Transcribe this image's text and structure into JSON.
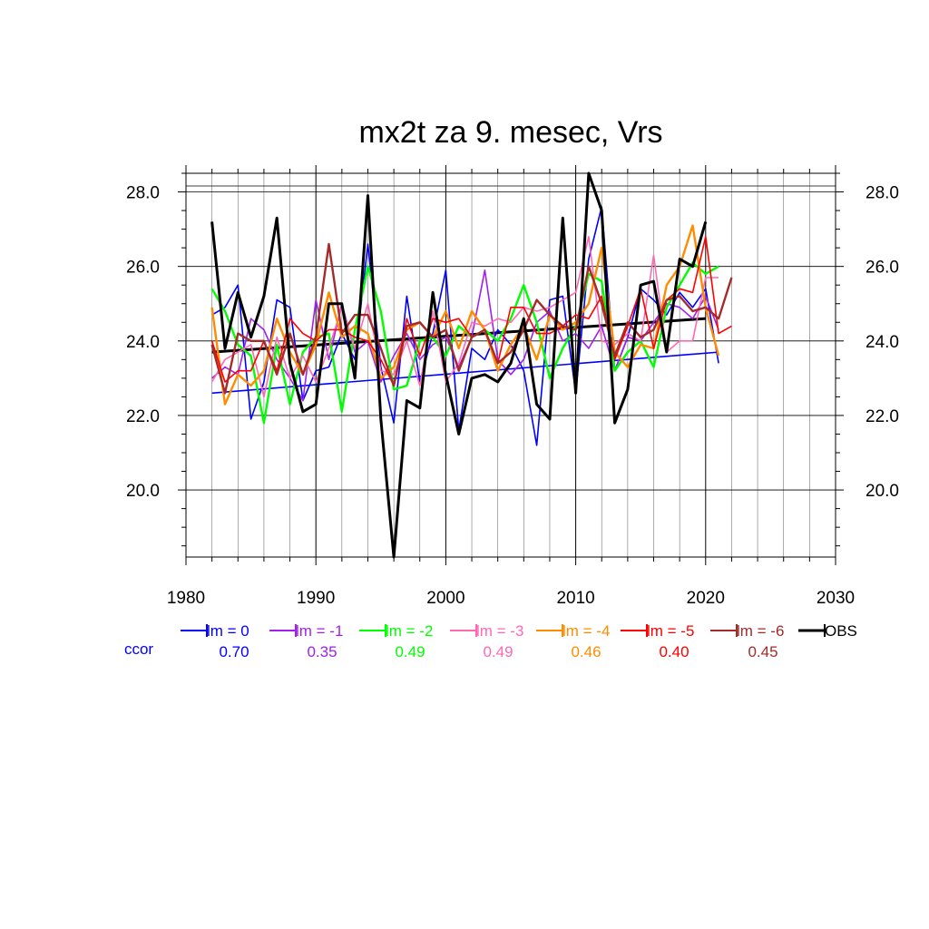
{
  "chart_data": {
    "type": "line",
    "title": "mx2t za 9. mesec, Vrs",
    "xlim": [
      1980,
      2030
    ],
    "ylim": [
      18.2,
      28.5
    ],
    "x_ticks": [
      1980,
      1990,
      2000,
      2010,
      2020,
      2030
    ],
    "x_tick_labels": [
      "1980",
      "1990",
      "2000",
      "2010",
      "2020",
      "2030"
    ],
    "y_ticks": [
      20.0,
      22.0,
      24.0,
      26.0,
      28.0
    ],
    "y_tick_labels": [
      "20.0",
      "22.0",
      "24.0",
      "26.0",
      "28.0"
    ],
    "grid": true,
    "legend_position": "below",
    "ccor_label": "ccor",
    "ccor_color": "#0000ff",
    "series": [
      {
        "name": "lm = 0",
        "color": "#0000ff",
        "width": 1.6,
        "ccor": "0.70",
        "x_start": 1982,
        "values": [
          24.7,
          24.9,
          25.5,
          21.9,
          22.9,
          25.1,
          24.9,
          22.4,
          23.2,
          23.3,
          24.2,
          23.5,
          26.6,
          23.3,
          21.8,
          25.2,
          22.9,
          24.2,
          25.9,
          21.6,
          23.8,
          23.5,
          24.3,
          23.9,
          23.2,
          21.2,
          25.1,
          25.2,
          22.6,
          26.2,
          27.6,
          23.2,
          24.1,
          25.4,
          25.1,
          24.7,
          25.3,
          24.9,
          25.4,
          23.4
        ],
        "trend": [
          22.6,
          23.7
        ]
      },
      {
        "name": "lm = -1",
        "color": "#a020f0",
        "width": 1.6,
        "ccor": "0.35",
        "x_start": 1982,
        "values": [
          23.0,
          23.3,
          23.1,
          24.6,
          24.3,
          23.5,
          23.0,
          22.4,
          25.1,
          23.5,
          25.0,
          23.7,
          24.0,
          22.9,
          23.6,
          24.2,
          23.5,
          23.9,
          24.1,
          23.3,
          24.1,
          25.9,
          23.5,
          23.1,
          23.5,
          24.5,
          24.8,
          24.0,
          24.2,
          23.8,
          24.4,
          23.2,
          24.1,
          24.0,
          24.5,
          25.0,
          24.9,
          24.6,
          25.2,
          24.3
        ],
        "trend": null
      },
      {
        "name": "lm = -2",
        "color": "#00ff00",
        "width": 2.4,
        "ccor": "0.49",
        "x_start": 1982,
        "values": [
          25.4,
          24.8,
          23.9,
          23.6,
          21.8,
          23.9,
          22.3,
          23.7,
          24.1,
          24.2,
          22.1,
          24.3,
          26.0,
          24.8,
          22.7,
          22.8,
          24.0,
          24.1,
          23.6,
          24.4,
          24.1,
          24.3,
          24.0,
          24.6,
          25.5,
          24.5,
          23.0,
          23.8,
          24.4,
          25.8,
          25.6,
          23.2,
          23.7,
          24.0,
          23.3,
          24.9,
          25.5,
          26.1,
          25.8,
          26.0
        ],
        "trend": null
      },
      {
        "name": "lm = -3",
        "color": "#ff69b4",
        "width": 1.6,
        "ccor": "0.49",
        "x_start": 1982,
        "values": [
          22.9,
          23.5,
          23.7,
          23.9,
          22.5,
          24.1,
          23.0,
          23.6,
          22.9,
          23.8,
          24.9,
          23.8,
          25.0,
          23.2,
          23.1,
          24.0,
          22.8,
          24.8,
          22.9,
          23.4,
          24.5,
          24.4,
          24.6,
          24.5,
          24.9,
          24.8,
          24.9,
          25.1,
          25.3,
          26.8,
          24.0,
          23.9,
          24.2,
          24.0,
          26.3,
          23.7,
          24.0,
          24.0,
          25.7,
          25.7
        ],
        "trend": null
      },
      {
        "name": "lm = -4",
        "color": "#ff8c00",
        "width": 2.4,
        "ccor": "0.46",
        "x_start": 1982,
        "values": [
          24.9,
          22.3,
          23.1,
          22.8,
          23.2,
          24.6,
          23.7,
          23.1,
          23.9,
          25.3,
          24.1,
          24.4,
          24.2,
          23.0,
          23.3,
          24.3,
          24.5,
          24.1,
          24.8,
          23.8,
          24.8,
          24.3,
          23.2,
          23.9,
          24.4,
          23.5,
          24.7,
          24.3,
          24.5,
          25.0,
          26.5,
          23.7,
          23.3,
          23.9,
          23.8,
          25.5,
          26.0,
          27.1,
          24.9,
          23.6
        ],
        "trend": null
      },
      {
        "name": "lm = -5",
        "color": "#ff0000",
        "width": 1.6,
        "ccor": "0.40",
        "x_start": 1982,
        "values": [
          24.0,
          22.9,
          23.2,
          23.2,
          24.0,
          23.2,
          24.6,
          24.2,
          24.0,
          24.3,
          24.3,
          24.1,
          24.0,
          23.5,
          22.8,
          24.6,
          23.6,
          24.6,
          24.5,
          24.6,
          24.1,
          24.3,
          23.4,
          24.9,
          24.9,
          24.2,
          24.2,
          24.4,
          24.7,
          24.6,
          25.2,
          23.5,
          24.4,
          25.4,
          23.8,
          25.1,
          25.4,
          25.3,
          26.8,
          24.2,
          24.4
        ],
        "trend": null
      },
      {
        "name": "lm = -6",
        "color": "#a52a2a",
        "width": 2.4,
        "ccor": "0.45",
        "x_start": 1982,
        "values": [
          23.9,
          22.6,
          24.2,
          24.0,
          24.0,
          23.1,
          24.2,
          23.1,
          24.1,
          26.6,
          24.2,
          24.7,
          24.7,
          23.8,
          22.8,
          24.4,
          24.5,
          24.1,
          24.3,
          23.2,
          24.1,
          24.3,
          23.4,
          23.7,
          24.3,
          25.1,
          24.7,
          24.4,
          24.3,
          26.0,
          25.0,
          23.6,
          24.5,
          24.1,
          24.3,
          25.1,
          25.2,
          24.8,
          24.9,
          24.6,
          25.7
        ],
        "trend": null
      },
      {
        "name": "OBS",
        "color": "#000000",
        "width": 3.0,
        "ccor": "",
        "x_start": 1982,
        "values": [
          27.2,
          23.8,
          25.3,
          24.1,
          25.2,
          27.3,
          23.4,
          22.1,
          22.3,
          25.0,
          25.0,
          23.0,
          27.9,
          21.9,
          18.2,
          22.4,
          22.2,
          25.3,
          23.1,
          21.5,
          23.0,
          23.1,
          22.9,
          23.4,
          24.6,
          22.3,
          21.9,
          27.3,
          22.6,
          28.5,
          27.5,
          21.8,
          22.7,
          25.5,
          25.6,
          23.7,
          26.2,
          26.0,
          27.2
        ],
        "trend": [
          23.7,
          24.6
        ]
      }
    ]
  }
}
